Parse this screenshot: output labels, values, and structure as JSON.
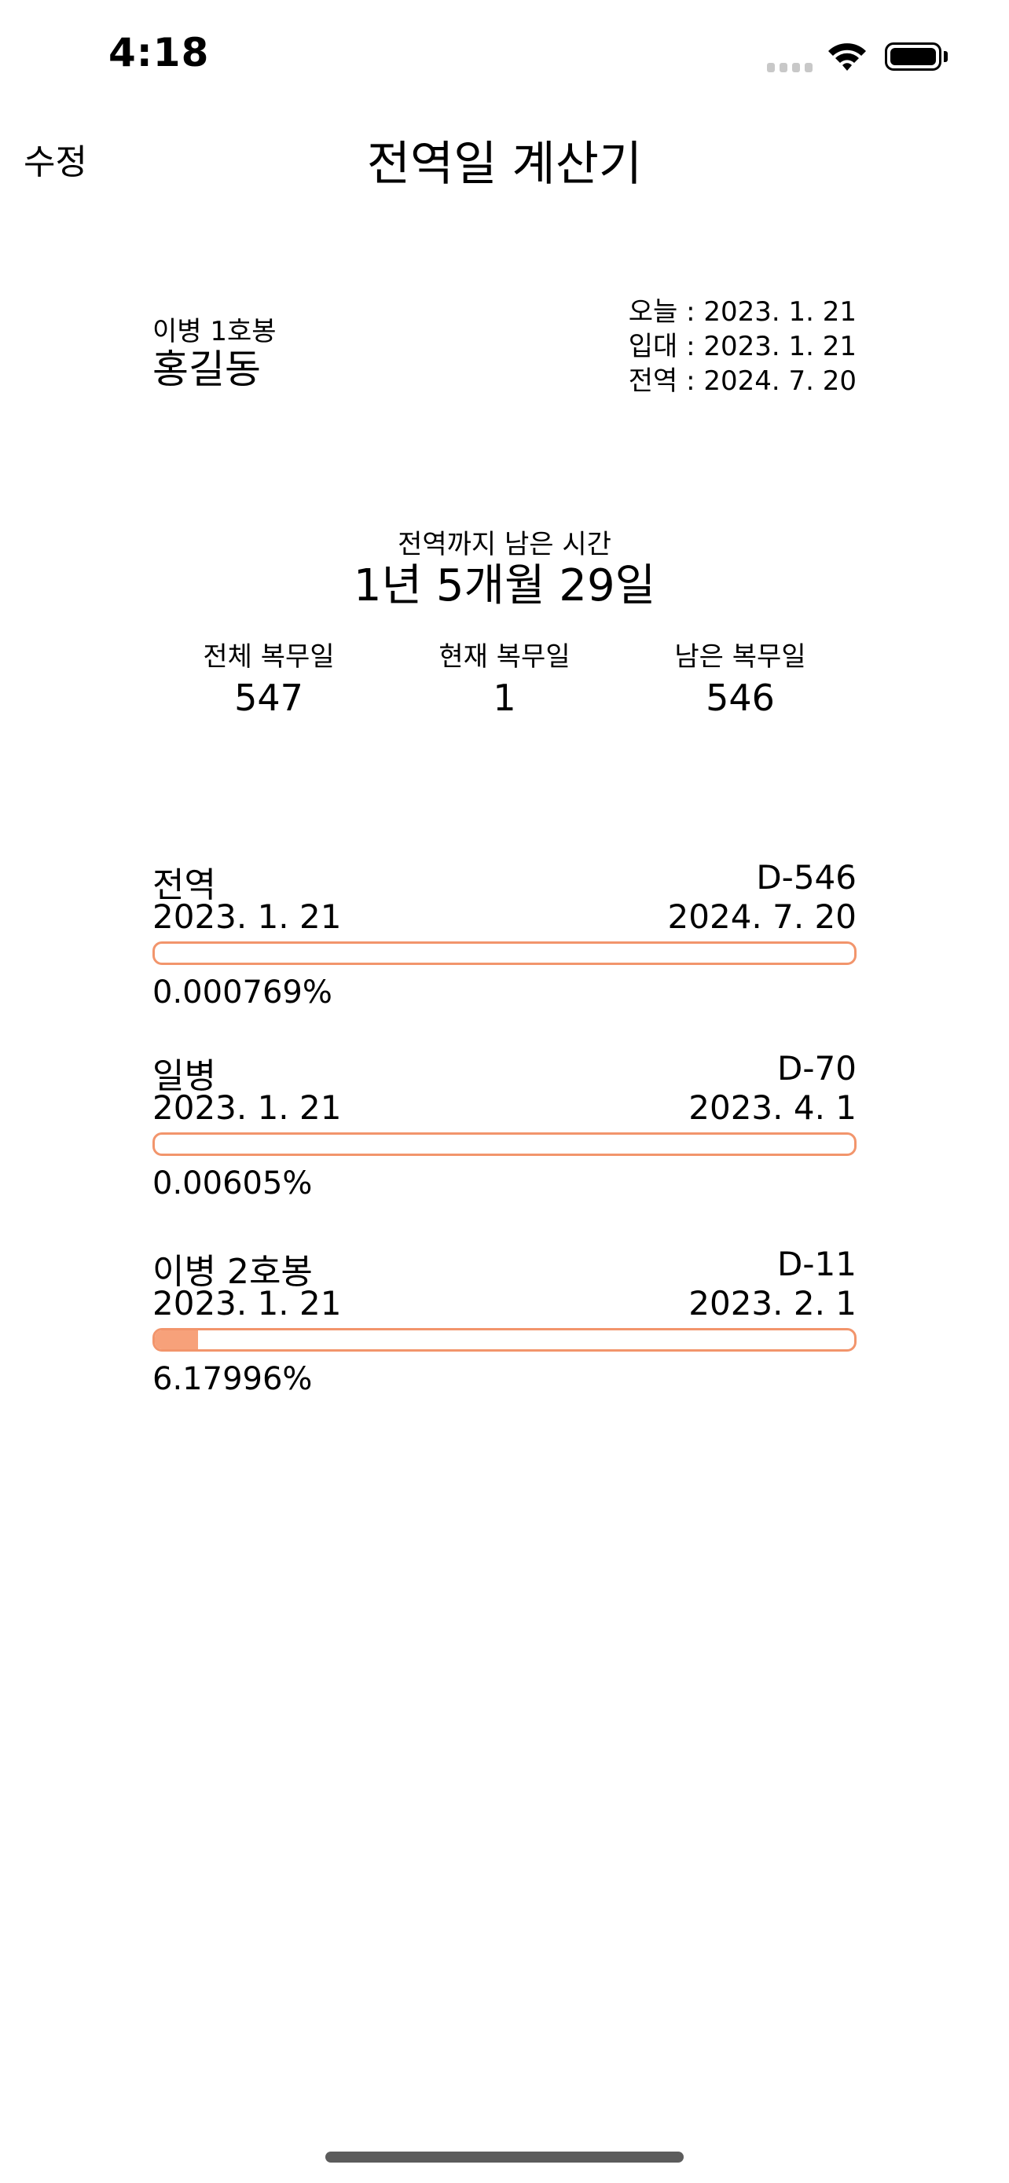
{
  "status_bar": {
    "time": "4:18"
  },
  "nav": {
    "edit_label": "수정",
    "title": "전역일 계산기"
  },
  "profile": {
    "rank": "이병 1호봉",
    "name": "홍길동",
    "today": "오늘 : 2023. 1. 21",
    "enlist": "입대 : 2023. 1. 21",
    "discharge": "전역 : 2024. 7. 20"
  },
  "remaining": {
    "label": "전역까지 남은 시간",
    "value": "1년 5개월 29일"
  },
  "stats": [
    {
      "label": "전체 복무일",
      "value": "547"
    },
    {
      "label": "현재 복무일",
      "value": "1"
    },
    {
      "label": "남은 복무일",
      "value": "546"
    }
  ],
  "progress": [
    {
      "title": "전역",
      "dday": "D-546",
      "start": "2023. 1. 21",
      "end": "2024. 7. 20",
      "percent": "0.000769%",
      "fraction": 7.69e-06
    },
    {
      "title": "일병",
      "dday": "D-70",
      "start": "2023. 1. 21",
      "end": "2023. 4. 1",
      "percent": "0.00605%",
      "fraction": 6.05e-05
    },
    {
      "title": "이병 2호봉",
      "dday": "D-11",
      "start": "2023. 1. 21",
      "end": "2023. 2. 1",
      "percent": "6.17996%",
      "fraction": 0.0617996
    }
  ],
  "colors": {
    "bar_border": "#f2956c",
    "bar_fill": "#f7a17a"
  },
  "icons": [
    "signal-icon",
    "wifi-icon",
    "battery-icon"
  ]
}
